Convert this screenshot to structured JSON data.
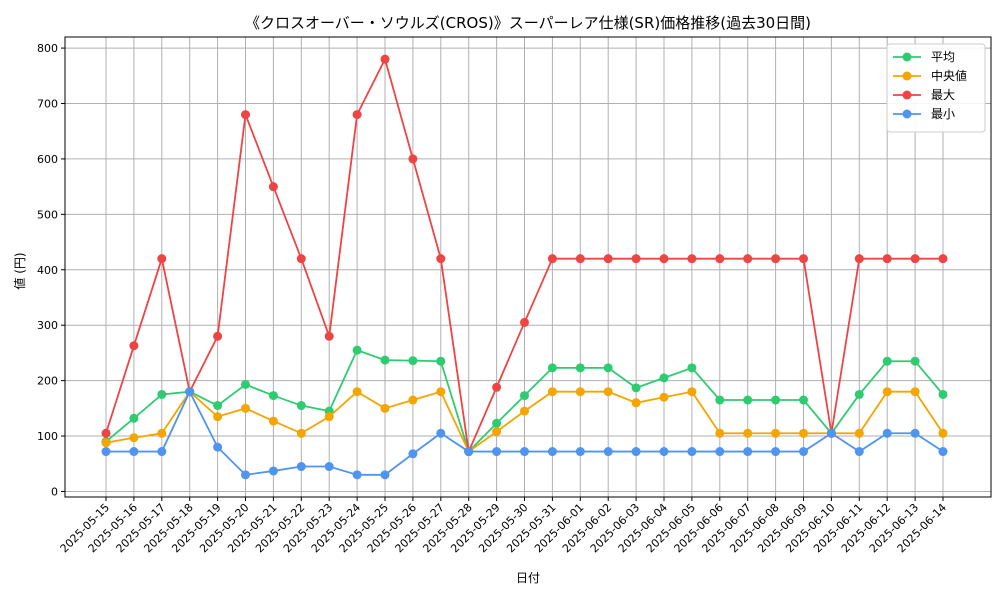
{
  "chart_data": {
    "type": "line",
    "title": "《クロスオーバー・ソウルズ(CROS)》スーパーレア仕様(SR)価格推移(過去30日間)",
    "xlabel": "日付",
    "ylabel": "値 (円)",
    "ylim": [
      -10,
      820
    ],
    "yticks": [
      0,
      100,
      200,
      300,
      400,
      500,
      600,
      700,
      800
    ],
    "grid": true,
    "legend_position": "top-right",
    "categories": [
      "2025-05-15",
      "2025-05-16",
      "2025-05-17",
      "2025-05-18",
      "2025-05-19",
      "2025-05-20",
      "2025-05-21",
      "2025-05-22",
      "2025-05-23",
      "2025-05-24",
      "2025-05-25",
      "2025-05-26",
      "2025-05-27",
      "2025-05-28",
      "2025-05-29",
      "2025-05-30",
      "2025-05-31",
      "2025-06-01",
      "2025-06-02",
      "2025-06-03",
      "2025-06-04",
      "2025-06-05",
      "2025-06-06",
      "2025-06-07",
      "2025-06-08",
      "2025-06-09",
      "2025-06-10",
      "2025-06-11",
      "2025-06-12",
      "2025-06-13",
      "2025-06-14"
    ],
    "series": [
      {
        "name": "平均",
        "color": "#2ecc71",
        "values": [
          90,
          132,
          175,
          180,
          155,
          193,
          173,
          155,
          145,
          255,
          237,
          236,
          235,
          72,
          123,
          173,
          223,
          223,
          223,
          187,
          205,
          223,
          165,
          165,
          165,
          165,
          105,
          175,
          235,
          235,
          175
        ]
      },
      {
        "name": "中央値",
        "color": "#f5a500",
        "values": [
          88,
          97,
          105,
          180,
          135,
          150,
          127,
          105,
          135,
          180,
          150,
          165,
          180,
          72,
          108,
          145,
          180,
          180,
          180,
          160,
          170,
          180,
          105,
          105,
          105,
          105,
          105,
          105,
          180,
          180,
          105
        ]
      },
      {
        "name": "最大",
        "color": "#ef4444",
        "values": [
          105,
          263,
          420,
          180,
          280,
          680,
          550,
          420,
          280,
          680,
          780,
          600,
          420,
          72,
          188,
          305,
          420,
          420,
          420,
          420,
          420,
          420,
          420,
          420,
          420,
          420,
          105,
          420,
          420,
          420,
          420
        ]
      },
      {
        "name": "最小",
        "color": "#4f94ef",
        "values": [
          72,
          72,
          72,
          180,
          80,
          30,
          37,
          45,
          45,
          30,
          30,
          68,
          105,
          72,
          72,
          72,
          72,
          72,
          72,
          72,
          72,
          72,
          72,
          72,
          72,
          72,
          105,
          72,
          105,
          105,
          72
        ]
      }
    ]
  }
}
